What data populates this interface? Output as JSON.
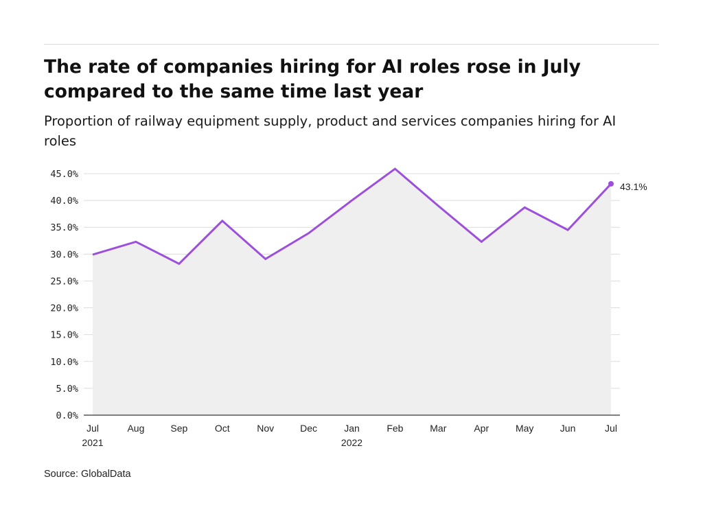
{
  "header": {
    "title": "The rate of companies hiring for AI roles rose in July compared to the same time last year",
    "subtitle": "Proportion of railway equipment supply, product and services companies hiring for AI roles"
  },
  "footer": {
    "source": "Source: GlobalData"
  },
  "colors": {
    "line": "#9b4fdb",
    "area": "#efefef",
    "grid": "#dcdcdc",
    "axis": "#333333"
  },
  "chart_data": {
    "type": "area",
    "title": "The rate of companies hiring for AI roles rose in July compared to the same time last year",
    "subtitle": "Proportion of railway equipment supply, product and services companies hiring for AI roles",
    "x": [
      "Jul 2021",
      "Aug 2021",
      "Sep 2021",
      "Oct 2021",
      "Nov 2021",
      "Dec 2021",
      "Jan 2022",
      "Feb 2022",
      "Mar 2022",
      "Apr 2022",
      "May 2022",
      "Jun 2022",
      "Jul 2022"
    ],
    "x_tick_labels": [
      [
        "Jul",
        "2021"
      ],
      [
        "Aug"
      ],
      [
        "Sep"
      ],
      [
        "Oct"
      ],
      [
        "Nov"
      ],
      [
        "Dec"
      ],
      [
        "Jan",
        "2022"
      ],
      [
        "Feb"
      ],
      [
        "Mar"
      ],
      [
        "Apr"
      ],
      [
        "May"
      ],
      [
        "Jun"
      ],
      [
        "Jul"
      ]
    ],
    "series": [
      {
        "values": [
          29.9,
          32.3,
          28.2,
          36.2,
          29.1,
          33.9,
          40.0,
          45.9,
          39.0,
          32.3,
          38.7,
          34.5,
          43.1
        ]
      }
    ],
    "ylim": [
      0,
      45
    ],
    "yticks": [
      0,
      5,
      10,
      15,
      20,
      25,
      30,
      35,
      40,
      45
    ],
    "y_tick_labels": [
      "0.0%",
      "5.0%",
      "10.0%",
      "15.0%",
      "20.0%",
      "25.0%",
      "30.0%",
      "35.0%",
      "40.0%",
      "45.0%"
    ],
    "end_label": "43.1%",
    "grid": true,
    "legend": "none",
    "xlabel": "",
    "ylabel": ""
  }
}
